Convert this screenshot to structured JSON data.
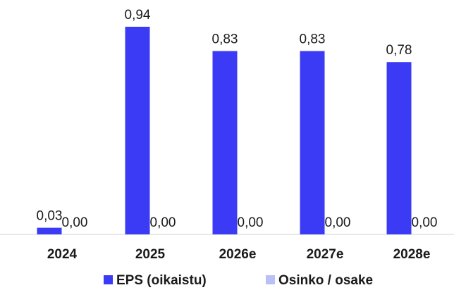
{
  "chart_data": {
    "type": "bar",
    "categories": [
      "2024",
      "2025",
      "2026e",
      "2027e",
      "2028e"
    ],
    "series": [
      {
        "name": "EPS (oikaistu)",
        "values": [
          0.03,
          0.94,
          0.83,
          0.83,
          0.78
        ],
        "labels": [
          "0,03",
          "0,94",
          "0,83",
          "0,83",
          "0,78"
        ],
        "color": "#3b3bf5"
      },
      {
        "name": "Osinko / osake",
        "values": [
          0.0,
          0.0,
          0.0,
          0.0,
          0.0
        ],
        "labels": [
          "0,00",
          "0,00",
          "0,00",
          "0,00",
          "0,00"
        ],
        "color": "#b8c0f7"
      }
    ],
    "ylim": [
      0,
      0.94
    ],
    "legend_position": "bottom",
    "grid": false
  }
}
